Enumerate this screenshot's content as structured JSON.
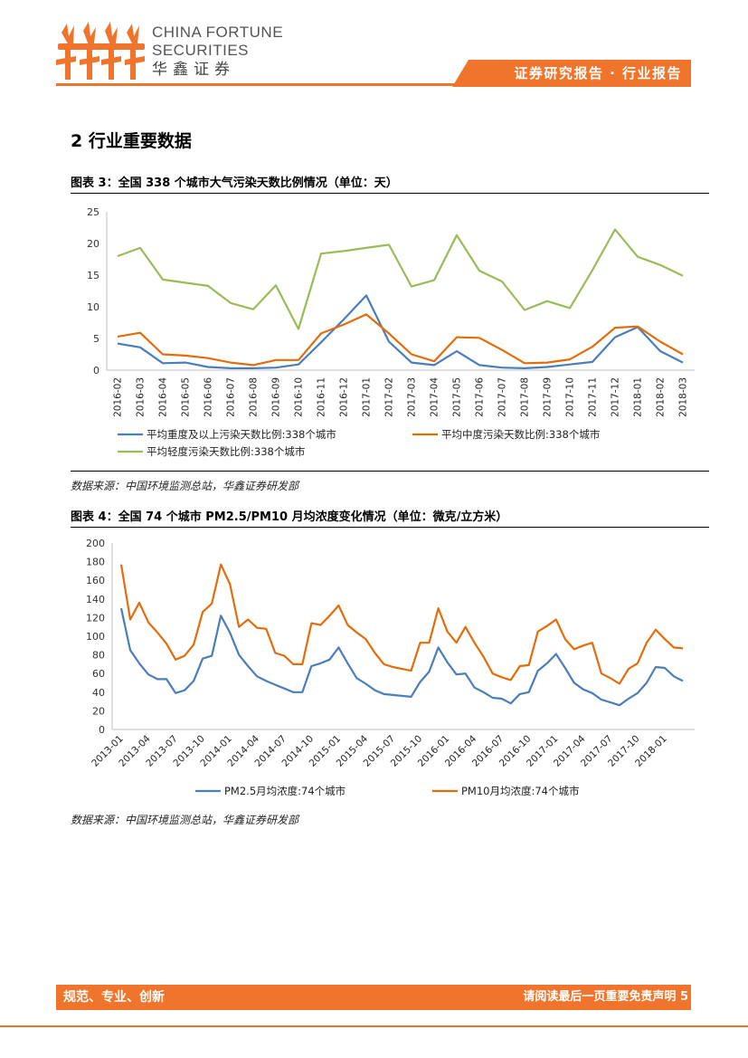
{
  "header": {
    "brand_line1": "CHINA FORTUNE",
    "brand_line2": "SECURITIES",
    "brand_line3": "华鑫证券",
    "report_type": "证券研究报告 · 行业报告",
    "accent_color": "#f0742b"
  },
  "section_title": "2 行业重要数据",
  "figure3": {
    "title": "图表 3：全国 338 个城市大气污染天数比例情况（单位：天）",
    "source": "数据来源：中国环境监测总站，华鑫证券研发部"
  },
  "figure4": {
    "title": "图表 4：全国 74 个城市 PM2.5/PM10 月均浓度变化情况（单位：微克/立方米）",
    "source": "数据来源：中国环境监测总站，华鑫证券研发部"
  },
  "footer": {
    "left": "规范、专业、创新",
    "right": "请阅读最后一页重要免责声明 5"
  },
  "chart_data": [
    {
      "type": "line",
      "title": "全国 338 个城市大气污染天数比例情况（单位：天）",
      "ylim": [
        0,
        25
      ],
      "yticks": [
        0,
        5,
        10,
        15,
        20,
        25
      ],
      "grid": false,
      "legend": "bottom",
      "categories": [
        "2016-02",
        "2016-03",
        "2016-04",
        "2016-05",
        "2016-06",
        "2016-07",
        "2016-08",
        "2016-09",
        "2016-10",
        "2016-11",
        "2016-12",
        "2017-01",
        "2017-02",
        "2017-03",
        "2017-04",
        "2017-05",
        "2017-06",
        "2017-07",
        "2017-08",
        "2017-09",
        "2017-10",
        "2017-11",
        "2017-12",
        "2018-01",
        "2018-02",
        "2018-03"
      ],
      "series": [
        {
          "name": "平均重度及以上污染天数比例:338个城市",
          "color": "#4a7ebb",
          "values": [
            4.2,
            3.6,
            1.1,
            1.2,
            0.5,
            0.3,
            0.3,
            0.4,
            0.9,
            4.4,
            8.0,
            11.8,
            4.5,
            1.2,
            0.8,
            3.0,
            0.8,
            0.4,
            0.3,
            0.5,
            0.9,
            1.3,
            5.2,
            6.8,
            3.0,
            1.2
          ]
        },
        {
          "name": "平均中度污染天数比例:338个城市",
          "color": "#e46c0a",
          "values": [
            5.3,
            5.9,
            2.5,
            2.3,
            1.9,
            1.2,
            0.8,
            1.6,
            1.6,
            5.8,
            7.2,
            8.8,
            5.8,
            2.5,
            1.4,
            5.2,
            5.1,
            3.2,
            1.1,
            1.2,
            1.7,
            3.7,
            6.7,
            6.9,
            4.5,
            2.5
          ]
        },
        {
          "name": "平均轻度污染天数比例:338个城市",
          "color": "#9bbb59",
          "values": [
            18.0,
            19.3,
            14.3,
            13.8,
            13.3,
            10.6,
            9.6,
            13.4,
            6.5,
            18.4,
            18.8,
            19.3,
            19.8,
            13.2,
            14.2,
            21.3,
            15.7,
            14.0,
            9.5,
            10.9,
            9.8,
            15.8,
            22.2,
            17.9,
            16.6,
            14.9
          ]
        }
      ]
    },
    {
      "type": "line",
      "title": "全国 74 个城市 PM2.5/PM10 月均浓度变化情况（单位：微克/立方米）",
      "ylim": [
        0,
        200
      ],
      "yticks": [
        0,
        20,
        40,
        60,
        80,
        100,
        120,
        140,
        160,
        180,
        200
      ],
      "grid": false,
      "legend": "bottom",
      "x_tick_labels": [
        "2013-01",
        "2013-04",
        "2013-07",
        "2013-10",
        "2014-01",
        "2014-04",
        "2014-07",
        "2014-10",
        "2015-01",
        "2015-04",
        "2015-07",
        "2015-10",
        "2016-01",
        "2016-04",
        "2016-07",
        "2016-10",
        "2017-01",
        "2017-04",
        "2017-07",
        "2017-10",
        "2018-01"
      ],
      "series": [
        {
          "name": "PM2.5月均浓度:74个城市",
          "color": "#4a7ebb",
          "values": [
            130,
            85,
            71,
            59,
            54,
            54,
            39,
            42,
            52,
            76,
            79,
            122,
            104,
            80,
            68,
            57,
            52,
            48,
            44,
            40,
            40,
            68,
            71,
            75,
            88,
            71,
            55,
            49,
            42,
            38,
            37,
            36,
            35,
            51,
            62,
            88,
            72,
            59,
            60,
            45,
            40,
            34,
            33,
            28,
            38,
            40,
            63,
            71,
            81,
            66,
            50,
            43,
            39,
            32,
            29,
            26,
            33,
            39,
            50,
            67,
            66,
            57,
            52
          ]
        },
        {
          "name": "PM10月均浓度:74个城市",
          "color": "#e46c0a",
          "values": [
            177,
            118,
            136,
            115,
            104,
            92,
            75,
            79,
            91,
            126,
            135,
            177,
            156,
            110,
            118,
            109,
            108,
            82,
            79,
            70,
            70,
            114,
            112,
            122,
            133,
            112,
            104,
            97,
            82,
            70,
            67,
            65,
            63,
            93,
            93,
            130,
            105,
            93,
            110,
            93,
            78,
            60,
            56,
            53,
            68,
            69,
            105,
            111,
            118,
            97,
            86,
            90,
            93,
            60,
            55,
            49,
            65,
            71,
            93,
            107,
            97,
            88,
            87
          ]
        }
      ]
    }
  ]
}
